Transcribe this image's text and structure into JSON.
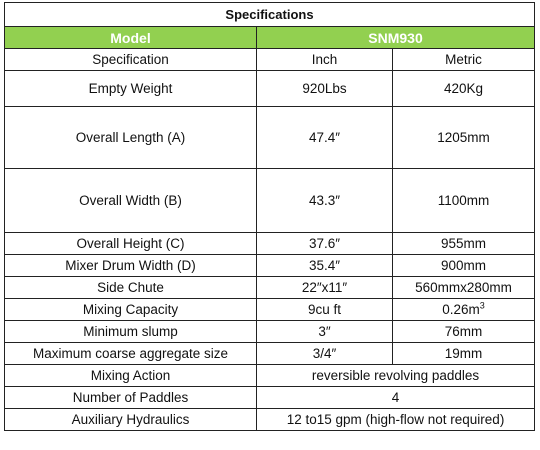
{
  "table": {
    "title": "Specifications",
    "model_label": "Model",
    "model_value": "SNM930",
    "model_row_color": "#92d050",
    "col_spec": "Specification",
    "col_inch": "Inch",
    "col_metric": "Metric",
    "rows": [
      {
        "label": "Empty Weight",
        "inch": "920Lbs",
        "metric": "420Kg"
      },
      {
        "label": "Overall Length (A)",
        "inch": "47.4″",
        "metric": "1205mm"
      },
      {
        "label": "Overall Width (B)",
        "inch": "43.3″",
        "metric": "1100mm"
      },
      {
        "label": "Overall Height (C)",
        "inch": "37.6″",
        "metric": "955mm"
      },
      {
        "label": "Mixer Drum Width (D)",
        "inch": "35.4″",
        "metric": "900mm"
      },
      {
        "label": "Side Chute",
        "inch": "22″x11″",
        "metric": "560mmx280mm"
      },
      {
        "label": "Mixing Capacity",
        "inch": "9cu ft",
        "metric": "0.26m",
        "metric_sup": "3"
      },
      {
        "label": "Minimum slump",
        "inch": "3″",
        "metric": "76mm"
      },
      {
        "label": "Maximum coarse aggregate size",
        "inch": "3/4″",
        "metric": "19mm"
      },
      {
        "label": "Mixing Action",
        "value": "reversible revolving paddles"
      },
      {
        "label": "Number of Paddles",
        "value": "4"
      },
      {
        "label": "Auxiliary Hydraulics",
        "value": "12 to15 gpm (high-flow not required)"
      }
    ]
  }
}
